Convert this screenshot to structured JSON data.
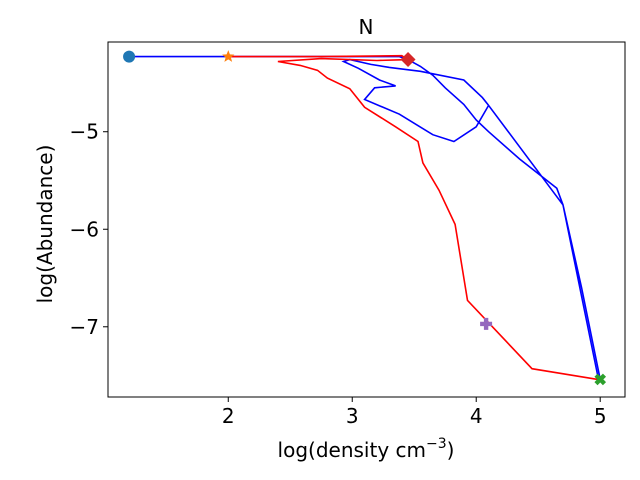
{
  "chart_data": {
    "type": "line",
    "title": "N",
    "xlabel_main": "log(density cm",
    "xlabel_sup": "−3",
    "xlabel_close": ")",
    "ylabel": "log(Abundance)",
    "xlim": [
      1.03,
      5.2
    ],
    "ylim": [
      -7.72,
      -4.08
    ],
    "xticks": [
      2,
      3,
      4,
      5
    ],
    "xtick_labels": [
      "2",
      "3",
      "4",
      "5"
    ],
    "yticks": [
      -5,
      -6,
      -7
    ],
    "ytick_labels": [
      "−5",
      "−6",
      "−7"
    ],
    "grid": false,
    "series": [
      {
        "color": "#0000ff",
        "points": [
          [
            1.2,
            -4.23
          ],
          [
            2.0,
            -4.23
          ],
          [
            2.5,
            -4.23
          ],
          [
            3.0,
            -4.23
          ],
          [
            3.38,
            -4.23
          ],
          [
            3.45,
            -4.26
          ],
          [
            3.55,
            -4.33
          ],
          [
            3.65,
            -4.42
          ],
          [
            3.75,
            -4.55
          ],
          [
            3.9,
            -4.72
          ],
          [
            4.0,
            -4.88
          ],
          [
            4.1,
            -5.0
          ],
          [
            4.35,
            -5.28
          ],
          [
            4.65,
            -5.58
          ],
          [
            4.7,
            -5.75
          ],
          [
            4.85,
            -6.6
          ],
          [
            5.0,
            -7.54
          ],
          [
            4.98,
            -7.5
          ],
          [
            4.7,
            -5.75
          ],
          [
            4.1,
            -4.73
          ],
          [
            4.0,
            -4.95
          ],
          [
            3.82,
            -5.1
          ],
          [
            3.65,
            -5.03
          ],
          [
            3.38,
            -4.82
          ],
          [
            3.1,
            -4.67
          ],
          [
            3.18,
            -4.55
          ],
          [
            3.35,
            -4.53
          ],
          [
            3.22,
            -4.47
          ],
          [
            3.05,
            -4.35
          ],
          [
            2.93,
            -4.28
          ],
          [
            2.98,
            -4.26
          ],
          [
            3.15,
            -4.31
          ],
          [
            3.3,
            -4.34
          ],
          [
            3.55,
            -4.38
          ],
          [
            3.9,
            -4.47
          ],
          [
            4.05,
            -4.65
          ],
          [
            4.1,
            -4.73
          ]
        ]
      },
      {
        "color": "#ff0000",
        "points": [
          [
            2.0,
            -4.23
          ],
          [
            2.3,
            -4.23
          ],
          [
            2.75,
            -4.23
          ],
          [
            3.4,
            -4.22
          ],
          [
            3.45,
            -4.26
          ],
          [
            3.2,
            -4.27
          ],
          [
            2.75,
            -4.25
          ],
          [
            2.4,
            -4.28
          ],
          [
            2.58,
            -4.32
          ],
          [
            2.72,
            -4.37
          ],
          [
            2.8,
            -4.45
          ],
          [
            2.98,
            -4.56
          ],
          [
            3.1,
            -4.75
          ],
          [
            3.35,
            -4.95
          ],
          [
            3.53,
            -5.1
          ],
          [
            3.57,
            -5.32
          ],
          [
            3.7,
            -5.6
          ],
          [
            3.83,
            -5.95
          ],
          [
            3.93,
            -6.73
          ],
          [
            4.45,
            -7.43
          ],
          [
            4.98,
            -7.54
          ]
        ]
      }
    ],
    "markers": [
      {
        "name": "circle-marker",
        "shape": "circle",
        "color": "#1f77b4",
        "x": 1.2,
        "y": -4.23
      },
      {
        "name": "star-marker",
        "shape": "star",
        "color": "#ff7f0e",
        "x": 2.0,
        "y": -4.23
      },
      {
        "name": "diamond-marker",
        "shape": "diamond",
        "color": "#d62728",
        "x": 3.45,
        "y": -4.26
      },
      {
        "name": "plus-marker",
        "shape": "plus",
        "color": "#9467bd",
        "x": 4.08,
        "y": -6.97
      },
      {
        "name": "x-marker",
        "shape": "x",
        "color": "#2ca02c",
        "x": 5.0,
        "y": -7.54
      }
    ]
  }
}
